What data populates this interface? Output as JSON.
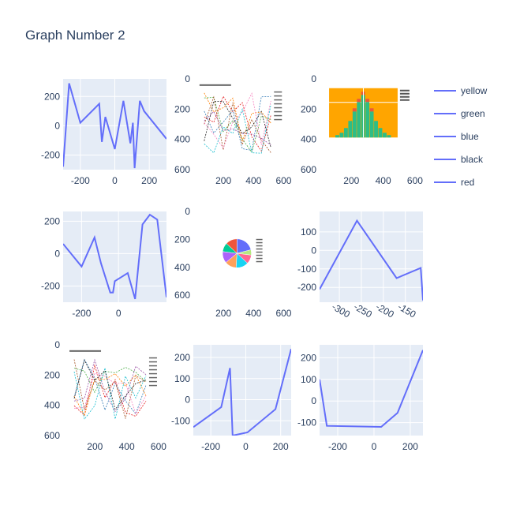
{
  "title": "Graph Number 2",
  "legend": {
    "placement": "right",
    "entries": [
      "yellow",
      "green",
      "blue",
      "black",
      "red"
    ]
  },
  "colors": {
    "line": "#636efa",
    "plot_bg": "#e5ecf6",
    "grid": "#ffffff",
    "text": "#2a3f5f",
    "hist_bg": "#ffa500",
    "hist_bars": "#2ebd85",
    "hist_top": "#e8593c"
  },
  "chart_data": [
    {
      "panel": "r1c1",
      "type": "line",
      "xlim": [
        -300,
        300
      ],
      "ylim": [
        -300,
        320
      ],
      "x": [
        -300,
        -265,
        -200,
        -90,
        -75,
        -55,
        0,
        50,
        90,
        105,
        115,
        145,
        170,
        300
      ],
      "y": [
        -280,
        290,
        20,
        150,
        -110,
        60,
        -160,
        170,
        -120,
        20,
        -290,
        170,
        100,
        -90
      ]
    },
    {
      "panel": "r1c2",
      "type": "image",
      "xlim": [
        0,
        650
      ],
      "ylim": [
        600,
        0
      ]
    },
    {
      "panel": "r1c3",
      "type": "image",
      "xlim": [
        0,
        650
      ],
      "ylim": [
        600,
        0
      ]
    },
    {
      "panel": "r2c1",
      "type": "line",
      "xlim": [
        -300,
        260
      ],
      "ylim": [
        -300,
        260
      ],
      "x": [
        -300,
        -200,
        -130,
        -95,
        -45,
        -30,
        -20,
        50,
        90,
        130,
        170,
        210,
        260
      ],
      "y": [
        60,
        -80,
        100,
        -60,
        -240,
        -240,
        -170,
        -120,
        -280,
        180,
        240,
        210,
        -270
      ]
    },
    {
      "panel": "r2c2",
      "type": "pie",
      "xlim": [
        0,
        650
      ],
      "ylim": [
        650,
        0
      ],
      "slices": [
        {
          "color": "#636efa",
          "value": 21
        },
        {
          "color": "#b6e880",
          "value": 6
        },
        {
          "color": "#ff6692",
          "value": 10
        },
        {
          "color": "#19d3f3",
          "value": 14
        },
        {
          "color": "#ffa15a",
          "value": 13
        },
        {
          "color": "#ab63fa",
          "value": 13
        },
        {
          "color": "#00cc96",
          "value": 10
        },
        {
          "color": "#ef553b",
          "value": 13
        }
      ]
    },
    {
      "panel": "r2c3",
      "type": "line",
      "xlim": [
        -345,
        -110
      ],
      "ylim": [
        -280,
        210
      ],
      "x": [
        -345,
        -260,
        -170,
        -115,
        -110
      ],
      "y": [
        -210,
        160,
        -150,
        -95,
        -270
      ]
    },
    {
      "panel": "r3c1",
      "type": "image",
      "xlim": [
        0,
        650
      ],
      "ylim": [
        600,
        0
      ]
    },
    {
      "panel": "r3c2",
      "type": "line",
      "xlim": [
        -300,
        260
      ],
      "ylim": [
        -170,
        260
      ],
      "x": [
        -300,
        -140,
        -90,
        -75,
        10,
        170,
        260
      ],
      "y": [
        -130,
        -35,
        150,
        -170,
        -155,
        -45,
        240
      ]
    },
    {
      "panel": "r3c3",
      "type": "line",
      "xlim": [
        -300,
        270
      ],
      "ylim": [
        -160,
        260
      ],
      "x": [
        -300,
        -260,
        40,
        130,
        270
      ],
      "y": [
        100,
        -115,
        -120,
        -55,
        235
      ]
    }
  ]
}
